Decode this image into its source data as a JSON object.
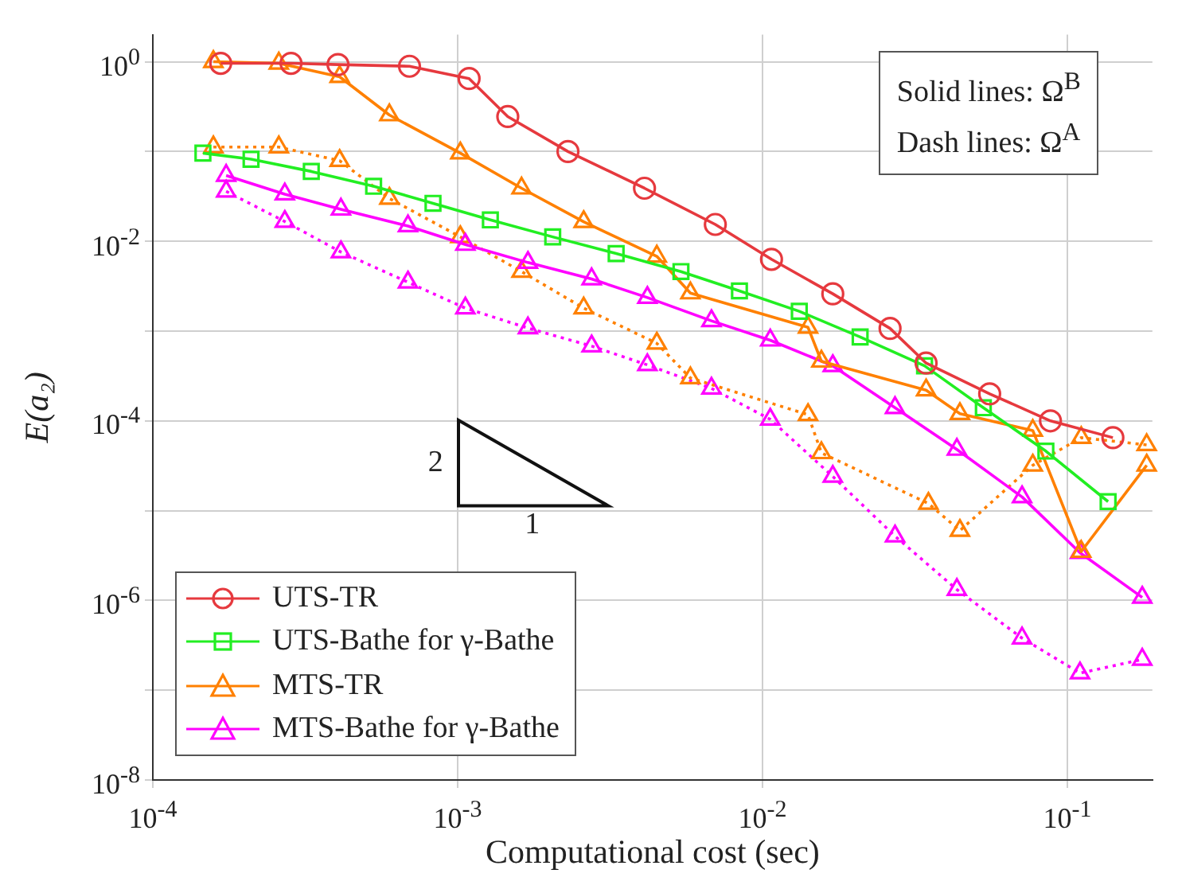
{
  "chart_data": {
    "type": "line",
    "xlabel": "Computational cost (sec)",
    "ylabel": "E(a₂)",
    "log": "xy",
    "grid": true,
    "legend": "bottom left",
    "xlim": [
      0.0001,
      0.19
    ],
    "ylim": [
      1e-08,
      2
    ],
    "xticks": [
      {
        "value": 0.0001,
        "label": "10$^{-4}$"
      },
      {
        "value": 0.001,
        "label": "10$^{-3}$"
      },
      {
        "value": 0.01,
        "label": "10$^{-2}$"
      },
      {
        "value": 0.1,
        "label": "10$^{-1}$"
      }
    ],
    "yticks": [
      {
        "value": 1e-08,
        "label": "10$^{-8}$"
      },
      {
        "value": 1e-07,
        "label": null
      },
      {
        "value": 1e-06,
        "label": "10$^{-6}$"
      },
      {
        "value": 1e-05,
        "label": null
      },
      {
        "value": 0.0001,
        "label": "10$^{-4}$"
      },
      {
        "value": 0.001,
        "label": null
      },
      {
        "value": 0.01,
        "label": "10$^{-2}$"
      },
      {
        "value": 0.1,
        "label": null
      },
      {
        "value": 1,
        "label": "10$^{0}$"
      }
    ],
    "annotations": [
      "Solid lines: Ω$^{B}$",
      "Dash lines: Ω$^{A}$",
      "2",
      "1"
    ],
    "series": [
      {
        "name": "UTS-TR",
        "color": "#e6393e",
        "marker": "circle",
        "line_style": "solid",
        "x": [
          0.000167,
          0.000284,
          0.000405,
          0.000695,
          0.00109,
          0.00146,
          0.0023,
          0.0041,
          0.007,
          0.0107,
          0.017,
          0.0262,
          0.0344,
          0.0556,
          0.088,
          0.141
        ],
        "values": [
          0.96,
          0.96,
          0.93,
          0.89,
          0.65,
          0.245,
          0.1,
          0.039,
          0.0154,
          0.0063,
          0.0026,
          0.00107,
          0.00044,
          0.0002,
          0.0001,
          6.5e-05
        ]
      },
      {
        "name": "UTS-Bathe for γ-Bathe",
        "color": "#22ee22",
        "marker": "square",
        "line_style": "solid",
        "x": [
          0.000146,
          0.00021,
          0.000331,
          0.00053,
          0.00083,
          0.00128,
          0.00205,
          0.00331,
          0.0054,
          0.0084,
          0.0132,
          0.0209,
          0.034,
          0.053,
          0.085,
          0.136
        ],
        "values": [
          0.096,
          0.082,
          0.06,
          0.041,
          0.0265,
          0.0173,
          0.0112,
          0.0073,
          0.0046,
          0.0028,
          0.00166,
          0.00086,
          0.00041,
          0.00014,
          4.6e-05,
          1.26e-05
        ]
      },
      {
        "name": "MTS-TR",
        "color": "#ff8000",
        "marker": "triangle",
        "line_style": "solid",
        "x": [
          0.000158,
          0.000259,
          0.00041,
          0.000597,
          0.00102,
          0.00162,
          0.00259,
          0.0045,
          0.0058,
          0.0141,
          0.0156,
          0.0344,
          0.0444,
          0.077,
          0.111,
          0.182
        ],
        "values": [
          1.0,
          0.96,
          0.68,
          0.255,
          0.096,
          0.039,
          0.0165,
          0.0068,
          0.00265,
          0.0011,
          0.00046,
          0.00022,
          0.00012,
          7.8e-05,
          3.5e-06,
          3.2e-05
        ]
      },
      {
        "name": "MTS-Bathe for γ-Bathe",
        "color": "#ff00ff",
        "marker": "triangle",
        "line_style": "solid",
        "x": [
          0.000174,
          0.000271,
          0.000414,
          0.000687,
          0.00106,
          0.0017,
          0.00275,
          0.00419,
          0.0068,
          0.0106,
          0.017,
          0.0272,
          0.0434,
          0.071,
          0.11,
          0.176
        ],
        "values": [
          0.054,
          0.0335,
          0.0227,
          0.0148,
          0.0092,
          0.0058,
          0.0038,
          0.00236,
          0.0013,
          0.00079,
          0.00041,
          0.00014,
          4.8e-05,
          1.42e-05,
          3.4e-06,
          1.08e-06
        ]
      },
      {
        "color": "#ff8000",
        "marker": "triangle",
        "line_style": "dotted",
        "x": [
          0.000158,
          0.000259,
          0.00041,
          0.000597,
          0.00102,
          0.00162,
          0.00259,
          0.0045,
          0.0058,
          0.0141,
          0.0156,
          0.035,
          0.0444,
          0.077,
          0.111,
          0.182
        ],
        "values": [
          0.112,
          0.112,
          0.079,
          0.03,
          0.0112,
          0.0046,
          0.0018,
          0.00073,
          0.0003,
          0.000117,
          4.4e-05,
          1.2e-05,
          6e-06,
          3.2e-05,
          6.5e-05,
          5.4e-05
        ]
      },
      {
        "color": "#ff00ff",
        "marker": "triangle",
        "line_style": "dotted",
        "x": [
          0.000174,
          0.000271,
          0.000414,
          0.000687,
          0.00106,
          0.0017,
          0.00275,
          0.00419,
          0.0068,
          0.0106,
          0.017,
          0.0272,
          0.0434,
          0.071,
          0.11,
          0.176
        ],
        "values": [
          0.036,
          0.0166,
          0.0076,
          0.0035,
          0.0018,
          0.00108,
          0.00068,
          0.00042,
          0.00023,
          0.000104,
          2.4e-05,
          5.2e-06,
          1.32e-06,
          3.8e-07,
          1.55e-07,
          2.2e-07
        ]
      }
    ]
  }
}
